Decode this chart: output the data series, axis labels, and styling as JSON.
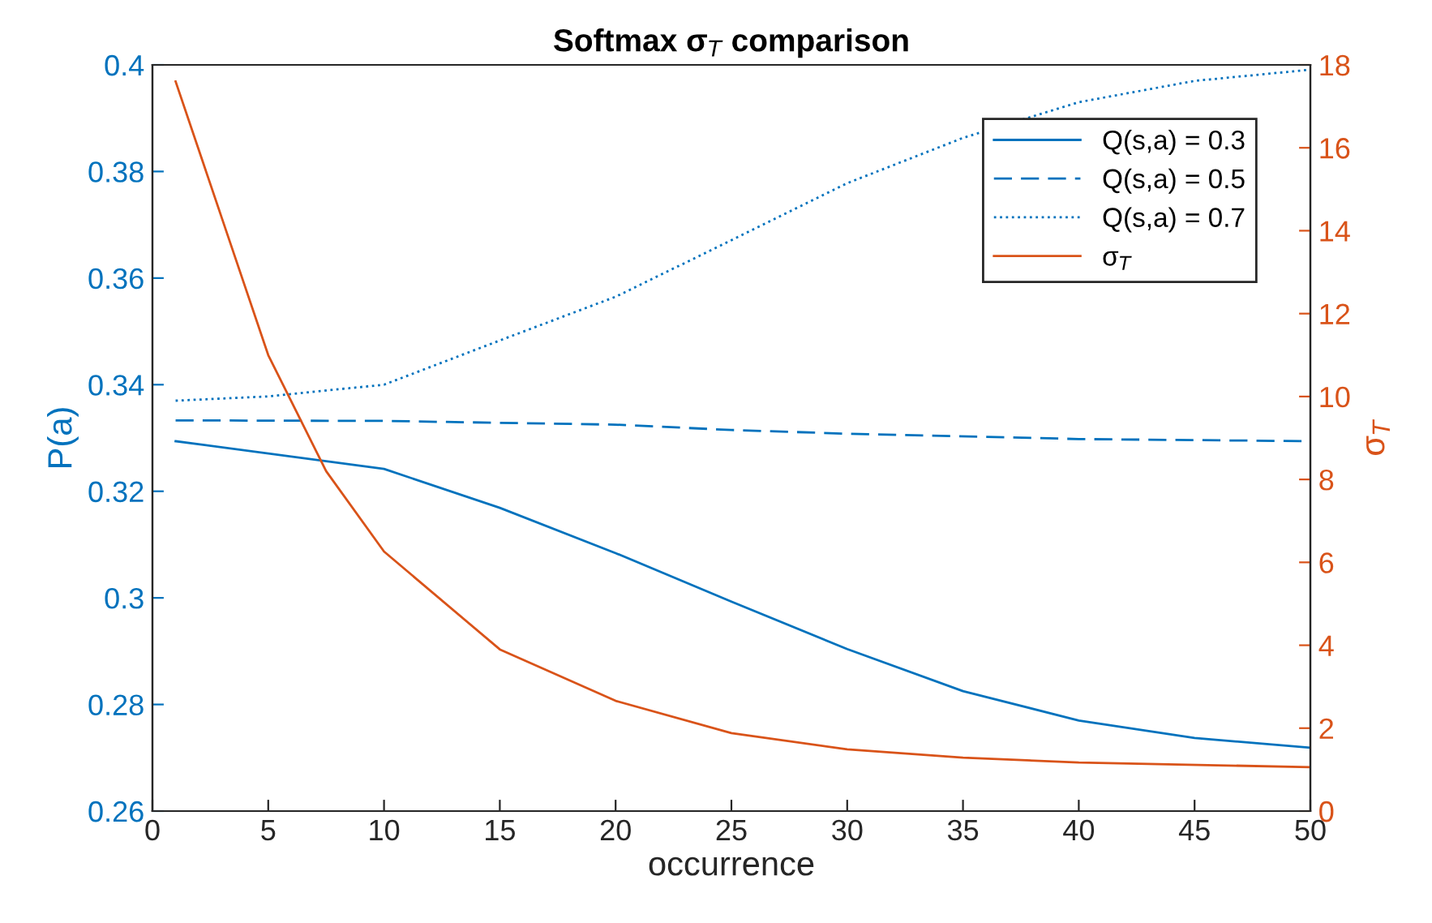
{
  "chart_data": {
    "type": "line",
    "title": "Softmax σ$_{T}$ comparison",
    "xlabel": "occurrence",
    "ylabel": "P(a)",
    "y2label": "σ$_{T}$",
    "xlim": [
      0,
      50
    ],
    "xticks": [
      0,
      5,
      10,
      15,
      20,
      25,
      30,
      35,
      40,
      45,
      50
    ],
    "ylim": [
      0.26,
      0.4
    ],
    "yticks": [
      0.26,
      0.28,
      0.3,
      0.32,
      0.34,
      0.36,
      0.38,
      0.4
    ],
    "y2lim": [
      0,
      18
    ],
    "y2ticks": [
      0,
      2,
      4,
      6,
      8,
      10,
      12,
      14,
      16,
      18
    ],
    "grid": false,
    "legend": "top right",
    "series": [
      {
        "name": "Q(s,a) = 0.3",
        "color": "#0072bd",
        "line_style": "solid",
        "x": [
          1,
          10,
          15,
          20,
          25,
          30,
          35,
          40,
          45,
          50
        ],
        "values": [
          0.3294,
          0.3242,
          0.3169,
          0.3084,
          0.2993,
          0.2904,
          0.2825,
          0.277,
          0.2737,
          0.2719
        ]
      },
      {
        "name": "Q(s,a) = 0.5",
        "color": "#0072bd",
        "line_style": "dashed",
        "x": [
          1,
          10,
          20,
          25,
          30,
          40,
          50
        ],
        "values": [
          0.3333,
          0.3332,
          0.3325,
          0.3315,
          0.3308,
          0.3298,
          0.3294
        ]
      },
      {
        "name": "Q(s,a) = 0.7",
        "color": "#0072bd",
        "line_style": "dotted",
        "x": [
          1,
          5,
          10,
          15,
          20,
          25,
          30,
          35,
          40,
          45,
          50
        ],
        "values": [
          0.337,
          0.3378,
          0.34,
          0.3483,
          0.3565,
          0.3671,
          0.3778,
          0.3863,
          0.393,
          0.397,
          0.3991
        ]
      },
      {
        "name": "σ$_{T}$",
        "color": "#d95319",
        "line_style": "solid",
        "axis": "y2",
        "x": [
          1,
          3,
          5,
          7.5,
          10,
          15,
          20,
          25,
          30,
          35,
          40,
          50
        ],
        "values": [
          17.6,
          14.3,
          11.0,
          8.2,
          6.26,
          3.9,
          2.66,
          1.88,
          1.49,
          1.29,
          1.17,
          1.06
        ]
      }
    ]
  }
}
